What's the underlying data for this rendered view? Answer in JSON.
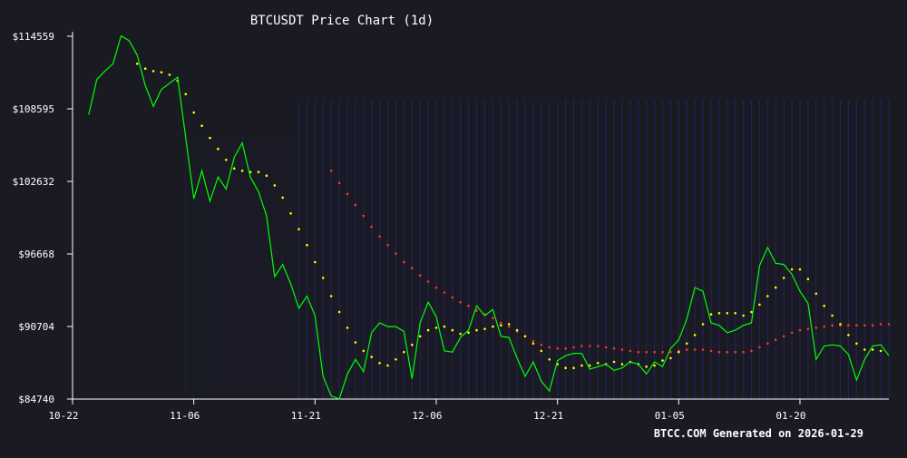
{
  "chart_data": {
    "type": "line",
    "title": "BTCUSDT Price Chart (1d)",
    "footer": "BTCC.COM Generated on 2026-01-29",
    "xlabel": "",
    "ylabel": "",
    "y_ticks": [
      "$84740",
      "$90704",
      "$96668",
      "$102632",
      "$108595",
      "$114559"
    ],
    "y_tick_values": [
      84740,
      90704,
      96668,
      102632,
      108595,
      114559
    ],
    "ylim": [
      84740,
      114559
    ],
    "x_ticks": [
      "10-22",
      "11-06",
      "11-21",
      "12-06",
      "12-21",
      "01-05",
      "01-20"
    ],
    "x_tick_days": [
      0,
      15,
      30,
      45,
      60,
      75,
      90
    ],
    "xlim_days": [
      0,
      101
    ],
    "grid": false,
    "colors": {
      "background": "#1a1a23",
      "axis": "#ffffff",
      "price": "#00ff00",
      "ma_short": "#ffff00",
      "ma_long": "#ff3333",
      "volume_band": "#2a2aa0"
    },
    "series": [
      {
        "kind": "price",
        "values": [
          [
            2,
            108100
          ],
          [
            3,
            111000
          ],
          [
            4,
            111700
          ],
          [
            5,
            112300
          ],
          [
            6,
            114600
          ],
          [
            7,
            114200
          ],
          [
            8,
            113000
          ],
          [
            9,
            110500
          ],
          [
            10,
            108800
          ],
          [
            11,
            110200
          ],
          [
            12,
            110700
          ],
          [
            13,
            111200
          ],
          [
            14,
            106200
          ],
          [
            15,
            101200
          ],
          [
            16,
            103500
          ],
          [
            17,
            101000
          ],
          [
            18,
            103000
          ],
          [
            19,
            102000
          ],
          [
            20,
            104600
          ],
          [
            21,
            105800
          ],
          [
            22,
            103000
          ],
          [
            23,
            101800
          ],
          [
            24,
            99800
          ],
          [
            25,
            94800
          ],
          [
            26,
            95800
          ],
          [
            27,
            94200
          ],
          [
            28,
            92200
          ],
          [
            29,
            93200
          ],
          [
            30,
            91600
          ],
          [
            31,
            86600
          ],
          [
            32,
            85000
          ],
          [
            33,
            84750
          ],
          [
            34,
            86800
          ],
          [
            35,
            88000
          ],
          [
            36,
            87000
          ],
          [
            37,
            90200
          ],
          [
            38,
            91000
          ],
          [
            39,
            90700
          ],
          [
            40,
            90700
          ],
          [
            41,
            90300
          ],
          [
            42,
            86400
          ],
          [
            43,
            91000
          ],
          [
            44,
            92700
          ],
          [
            45,
            91500
          ],
          [
            46,
            88700
          ],
          [
            47,
            88600
          ],
          [
            48,
            89800
          ],
          [
            49,
            90400
          ],
          [
            50,
            92400
          ],
          [
            51,
            91600
          ],
          [
            52,
            92100
          ],
          [
            53,
            89900
          ],
          [
            54,
            89800
          ],
          [
            55,
            88100
          ],
          [
            56,
            86600
          ],
          [
            57,
            87800
          ],
          [
            58,
            86200
          ],
          [
            59,
            85400
          ],
          [
            60,
            87900
          ],
          [
            61,
            88300
          ],
          [
            62,
            88500
          ],
          [
            63,
            88500
          ],
          [
            64,
            87200
          ],
          [
            65,
            87400
          ],
          [
            66,
            87600
          ],
          [
            67,
            87100
          ],
          [
            68,
            87300
          ],
          [
            69,
            87800
          ],
          [
            70,
            87600
          ],
          [
            71,
            86800
          ],
          [
            72,
            87800
          ],
          [
            73,
            87400
          ],
          [
            74,
            88900
          ],
          [
            75,
            89600
          ],
          [
            76,
            91300
          ],
          [
            77,
            93900
          ],
          [
            78,
            93600
          ],
          [
            79,
            91000
          ],
          [
            80,
            90800
          ],
          [
            81,
            90200
          ],
          [
            82,
            90400
          ],
          [
            83,
            90800
          ],
          [
            84,
            91000
          ],
          [
            85,
            95700
          ],
          [
            86,
            97200
          ],
          [
            87,
            95900
          ],
          [
            88,
            95800
          ],
          [
            89,
            95000
          ],
          [
            90,
            93600
          ],
          [
            91,
            92600
          ],
          [
            92,
            88000
          ],
          [
            93,
            89100
          ],
          [
            94,
            89200
          ],
          [
            95,
            89100
          ],
          [
            96,
            88400
          ],
          [
            97,
            86300
          ],
          [
            98,
            88000
          ],
          [
            99,
            89100
          ],
          [
            100,
            89200
          ],
          [
            101,
            88300
          ]
        ]
      },
      {
        "kind": "ma_short",
        "values": [
          [
            8,
            112300
          ],
          [
            9,
            111900
          ],
          [
            10,
            111700
          ],
          [
            11,
            111600
          ],
          [
            12,
            111400
          ],
          [
            13,
            110900
          ],
          [
            14,
            109800
          ],
          [
            15,
            108300
          ],
          [
            16,
            107200
          ],
          [
            17,
            106200
          ],
          [
            18,
            105300
          ],
          [
            19,
            104400
          ],
          [
            20,
            103700
          ],
          [
            21,
            103500
          ],
          [
            22,
            103400
          ],
          [
            23,
            103400
          ],
          [
            24,
            103100
          ],
          [
            25,
            102300
          ],
          [
            26,
            101300
          ],
          [
            27,
            100000
          ],
          [
            28,
            98700
          ],
          [
            29,
            97400
          ],
          [
            30,
            96000
          ],
          [
            31,
            94700
          ],
          [
            32,
            93200
          ],
          [
            33,
            91900
          ],
          [
            34,
            90600
          ],
          [
            35,
            89400
          ],
          [
            36,
            88700
          ],
          [
            37,
            88200
          ],
          [
            38,
            87700
          ],
          [
            39,
            87500
          ],
          [
            40,
            88000
          ],
          [
            41,
            88600
          ],
          [
            42,
            89200
          ],
          [
            43,
            89900
          ],
          [
            44,
            90400
          ],
          [
            45,
            90600
          ],
          [
            46,
            90700
          ],
          [
            47,
            90400
          ],
          [
            48,
            90100
          ],
          [
            49,
            90200
          ],
          [
            50,
            90400
          ],
          [
            51,
            90500
          ],
          [
            52,
            90700
          ],
          [
            53,
            90800
          ],
          [
            54,
            90900
          ],
          [
            55,
            90400
          ],
          [
            56,
            89900
          ],
          [
            57,
            89300
          ],
          [
            58,
            88700
          ],
          [
            59,
            88000
          ],
          [
            60,
            87600
          ],
          [
            61,
            87300
          ],
          [
            62,
            87300
          ],
          [
            63,
            87500
          ],
          [
            64,
            87500
          ],
          [
            65,
            87700
          ],
          [
            66,
            87600
          ],
          [
            67,
            87800
          ],
          [
            68,
            87600
          ],
          [
            69,
            87800
          ],
          [
            70,
            87600
          ],
          [
            71,
            87400
          ],
          [
            72,
            87500
          ],
          [
            73,
            87900
          ],
          [
            74,
            88100
          ],
          [
            75,
            88600
          ],
          [
            76,
            89300
          ],
          [
            77,
            90000
          ],
          [
            78,
            90900
          ],
          [
            79,
            91700
          ],
          [
            80,
            91800
          ],
          [
            81,
            91800
          ],
          [
            82,
            91800
          ],
          [
            83,
            91600
          ],
          [
            84,
            91900
          ],
          [
            85,
            92500
          ],
          [
            86,
            93200
          ],
          [
            87,
            93900
          ],
          [
            88,
            94700
          ],
          [
            89,
            95400
          ],
          [
            90,
            95400
          ],
          [
            91,
            94600
          ],
          [
            92,
            93400
          ],
          [
            93,
            92400
          ],
          [
            94,
            91600
          ],
          [
            95,
            90900
          ],
          [
            96,
            90000
          ],
          [
            97,
            89300
          ],
          [
            98,
            88800
          ],
          [
            99,
            88800
          ],
          [
            100,
            88700
          ]
        ]
      },
      {
        "kind": "ma_long",
        "values": [
          [
            32,
            103500
          ],
          [
            33,
            102500
          ],
          [
            34,
            101600
          ],
          [
            35,
            100700
          ],
          [
            36,
            99800
          ],
          [
            37,
            98900
          ],
          [
            38,
            98100
          ],
          [
            39,
            97400
          ],
          [
            40,
            96700
          ],
          [
            41,
            96000
          ],
          [
            42,
            95500
          ],
          [
            43,
            94900
          ],
          [
            44,
            94400
          ],
          [
            45,
            93900
          ],
          [
            46,
            93500
          ],
          [
            47,
            93100
          ],
          [
            48,
            92700
          ],
          [
            49,
            92400
          ],
          [
            50,
            92000
          ],
          [
            51,
            91700
          ],
          [
            52,
            91400
          ],
          [
            53,
            91000
          ],
          [
            54,
            90700
          ],
          [
            55,
            90300
          ],
          [
            56,
            89900
          ],
          [
            57,
            89500
          ],
          [
            58,
            89200
          ],
          [
            59,
            89000
          ],
          [
            60,
            88900
          ],
          [
            61,
            88900
          ],
          [
            62,
            89000
          ],
          [
            63,
            89100
          ],
          [
            64,
            89100
          ],
          [
            65,
            89100
          ],
          [
            66,
            89000
          ],
          [
            67,
            88900
          ],
          [
            68,
            88800
          ],
          [
            69,
            88700
          ],
          [
            70,
            88600
          ],
          [
            71,
            88600
          ],
          [
            72,
            88600
          ],
          [
            73,
            88600
          ],
          [
            74,
            88600
          ],
          [
            75,
            88700
          ],
          [
            76,
            88800
          ],
          [
            77,
            88800
          ],
          [
            78,
            88800
          ],
          [
            79,
            88700
          ],
          [
            80,
            88600
          ],
          [
            81,
            88600
          ],
          [
            82,
            88600
          ],
          [
            83,
            88600
          ],
          [
            84,
            88700
          ],
          [
            85,
            89000
          ],
          [
            86,
            89300
          ],
          [
            87,
            89600
          ],
          [
            88,
            89900
          ],
          [
            89,
            90200
          ],
          [
            90,
            90400
          ],
          [
            91,
            90500
          ],
          [
            92,
            90600
          ],
          [
            93,
            90700
          ],
          [
            94,
            90800
          ],
          [
            95,
            90800
          ],
          [
            96,
            90800
          ],
          [
            97,
            90800
          ],
          [
            98,
            90800
          ],
          [
            99,
            90800
          ],
          [
            100,
            90900
          ],
          [
            101,
            90900
          ]
        ]
      }
    ]
  }
}
